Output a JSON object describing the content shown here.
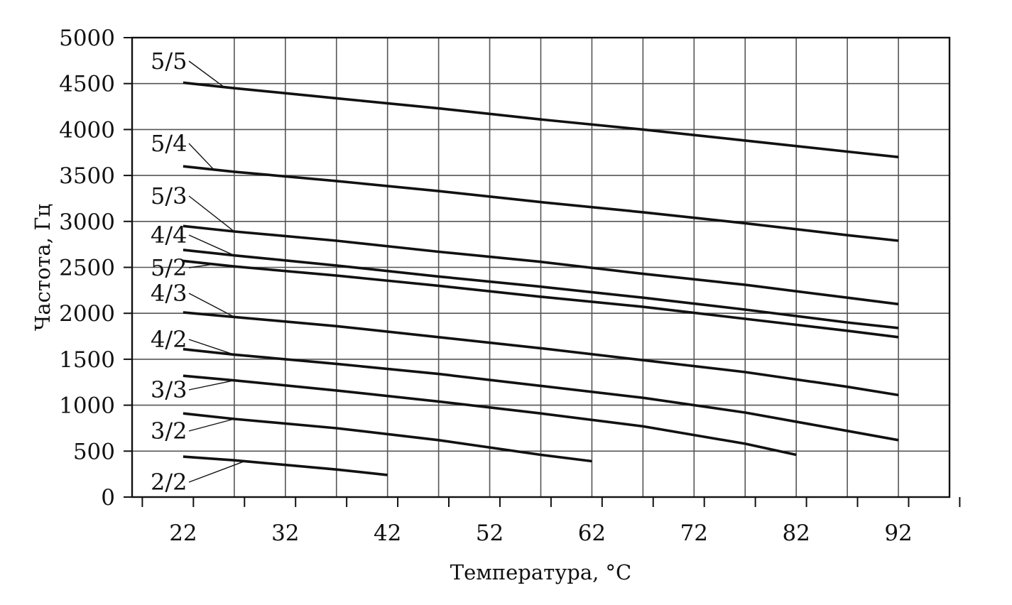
{
  "chart_data": {
    "type": "line",
    "title": "",
    "xlabel": "Температура, °C",
    "ylabel": "Частота, Гц",
    "x_ticks": [
      "22",
      "32",
      "42",
      "52",
      "62",
      "72",
      "82",
      "92"
    ],
    "y_ticks": [
      "0",
      "500",
      "1000",
      "1500",
      "2000",
      "2500",
      "3000",
      "3500",
      "4000",
      "4500",
      "5000"
    ],
    "xlim": [
      17,
      97
    ],
    "ylim": [
      0,
      5000
    ],
    "grid": true,
    "legend": "none",
    "series": [
      {
        "name": "5/5",
        "x": [
          22,
          27,
          37,
          47,
          57,
          67,
          77,
          87,
          92
        ],
        "y": [
          4510,
          4450,
          4340,
          4230,
          4110,
          4000,
          3880,
          3760,
          3700
        ]
      },
      {
        "name": "5/4",
        "x": [
          22,
          27,
          37,
          47,
          57,
          67,
          77,
          87,
          92
        ],
        "y": [
          3600,
          3540,
          3440,
          3330,
          3210,
          3100,
          2980,
          2850,
          2790
        ]
      },
      {
        "name": "5/3",
        "x": [
          22,
          27,
          37,
          47,
          57,
          67,
          77,
          87,
          92
        ],
        "y": [
          2950,
          2890,
          2790,
          2670,
          2560,
          2430,
          2310,
          2170,
          2100
        ]
      },
      {
        "name": "4/4",
        "x": [
          22,
          27,
          37,
          47,
          57,
          67,
          77,
          87,
          92
        ],
        "y": [
          2690,
          2630,
          2520,
          2400,
          2290,
          2170,
          2040,
          1900,
          1840
        ]
      },
      {
        "name": "5/2",
        "x": [
          22,
          27,
          37,
          47,
          57,
          67,
          77,
          87,
          92
        ],
        "y": [
          2570,
          2510,
          2410,
          2300,
          2180,
          2070,
          1940,
          1810,
          1740
        ]
      },
      {
        "name": "4/3",
        "x": [
          22,
          27,
          37,
          47,
          57,
          67,
          77,
          87,
          92
        ],
        "y": [
          2010,
          1960,
          1860,
          1740,
          1620,
          1490,
          1360,
          1200,
          1110
        ]
      },
      {
        "name": "4/2",
        "x": [
          22,
          27,
          37,
          47,
          57,
          67,
          77,
          87,
          92
        ],
        "y": [
          1610,
          1550,
          1450,
          1340,
          1210,
          1080,
          920,
          720,
          620
        ]
      },
      {
        "name": "3/3",
        "x": [
          22,
          27,
          37,
          47,
          57,
          67,
          77,
          82
        ],
        "y": [
          1320,
          1270,
          1160,
          1040,
          910,
          770,
          580,
          460
        ]
      },
      {
        "name": "3/2",
        "x": [
          22,
          27,
          37,
          47,
          57,
          62
        ],
        "y": [
          910,
          850,
          750,
          620,
          460,
          390
        ]
      },
      {
        "name": "2/2",
        "x": [
          22,
          27,
          37,
          42
        ],
        "y": [
          440,
          400,
          300,
          240
        ]
      }
    ],
    "series_labels": [
      "5/5",
      "5/4",
      "5/3",
      "4/4",
      "5/2",
      "4/3",
      "4/2",
      "3/3",
      "3/2",
      "2/2"
    ]
  }
}
